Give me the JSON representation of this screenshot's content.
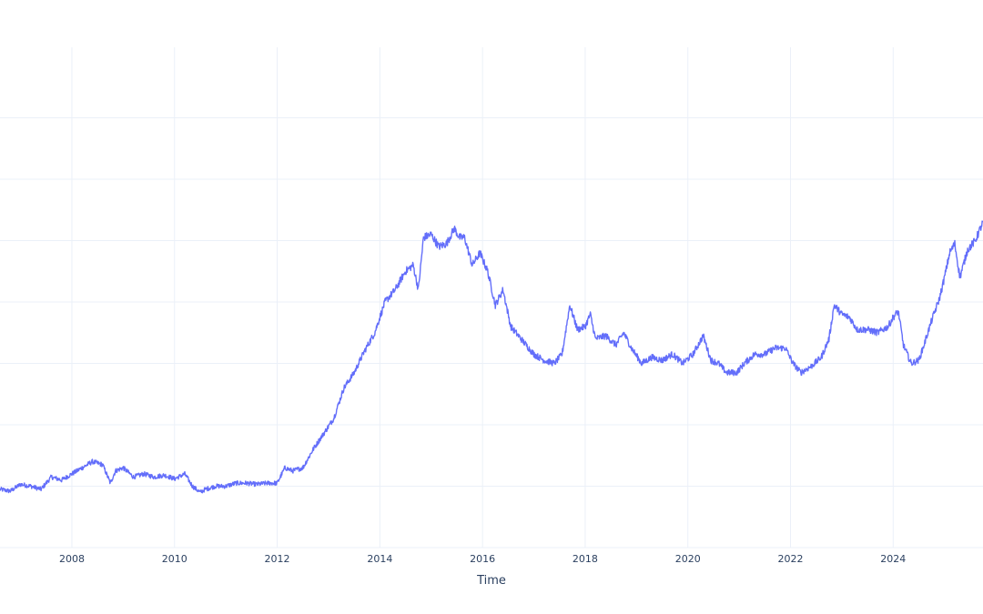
{
  "chart_data": {
    "type": "line",
    "title": "",
    "xlabel": "Time",
    "ylabel": "",
    "xlim": [
      2006.6,
      2025.75
    ],
    "ylim": [
      0,
      8
    ],
    "grid": true,
    "legend": "none",
    "x_ticks": [
      2008,
      2010,
      2012,
      2014,
      2016,
      2018,
      2020,
      2022,
      2024
    ],
    "x_tick_labels": [
      "2008",
      "2010",
      "2012",
      "2014",
      "2016",
      "2018",
      "2020",
      "2022",
      "2024"
    ],
    "y_gridlines": [
      0,
      1,
      2,
      3,
      4,
      5,
      6,
      7
    ],
    "colors": {
      "line": "#636efa",
      "grid": "#ebf0f8",
      "text": "#2a3f5f"
    },
    "series": [
      {
        "x": [
          2006.6,
          2006.8,
          2007.0,
          2007.2,
          2007.4,
          2007.6,
          2007.8,
          2008.0,
          2008.2,
          2008.4,
          2008.6,
          2008.75,
          2008.85,
          2009.0,
          2009.2,
          2009.4,
          2009.6,
          2009.8,
          2010.0,
          2010.2,
          2010.35,
          2010.5,
          2010.6,
          2010.8,
          2011.0,
          2011.2,
          2011.4,
          2011.6,
          2011.8,
          2012.0,
          2012.15,
          2012.3,
          2012.5,
          2012.7,
          2012.9,
          2013.1,
          2013.3,
          2013.5,
          2013.7,
          2013.9,
          2014.1,
          2014.3,
          2014.5,
          2014.65,
          2014.75,
          2014.85,
          2015.0,
          2015.15,
          2015.3,
          2015.45,
          2015.55,
          2015.65,
          2015.8,
          2015.95,
          2016.1,
          2016.25,
          2016.4,
          2016.55,
          2016.7,
          2016.85,
          2017.0,
          2017.2,
          2017.4,
          2017.55,
          2017.7,
          2017.85,
          2018.0,
          2018.1,
          2018.2,
          2018.4,
          2018.6,
          2018.75,
          2018.9,
          2019.1,
          2019.3,
          2019.5,
          2019.7,
          2019.9,
          2020.1,
          2020.2,
          2020.3,
          2020.45,
          2020.6,
          2020.75,
          2020.95,
          2021.1,
          2021.3,
          2021.5,
          2021.7,
          2021.9,
          2022.05,
          2022.2,
          2022.4,
          2022.6,
          2022.75,
          2022.85,
          2023.0,
          2023.15,
          2023.3,
          2023.5,
          2023.7,
          2023.9,
          2024.0,
          2024.1,
          2024.2,
          2024.35,
          2024.5,
          2024.6,
          2024.75,
          2024.9,
          2025.0,
          2025.1,
          2025.2,
          2025.3,
          2025.45,
          2025.6,
          2025.75
        ],
        "y": [
          0.95,
          0.92,
          1.03,
          1.0,
          0.95,
          1.15,
          1.1,
          1.2,
          1.3,
          1.4,
          1.35,
          1.05,
          1.25,
          1.3,
          1.15,
          1.2,
          1.15,
          1.18,
          1.12,
          1.2,
          1.0,
          0.9,
          0.95,
          1.0,
          1.0,
          1.05,
          1.05,
          1.03,
          1.05,
          1.05,
          1.3,
          1.25,
          1.3,
          1.6,
          1.85,
          2.1,
          2.6,
          2.85,
          3.2,
          3.5,
          4.0,
          4.2,
          4.5,
          4.6,
          4.2,
          5.05,
          5.1,
          4.9,
          4.95,
          5.2,
          5.05,
          5.05,
          4.6,
          4.8,
          4.5,
          3.95,
          4.2,
          3.6,
          3.45,
          3.3,
          3.15,
          3.05,
          3.0,
          3.15,
          3.95,
          3.55,
          3.6,
          3.8,
          3.4,
          3.45,
          3.3,
          3.5,
          3.25,
          3.0,
          3.1,
          3.05,
          3.15,
          3.0,
          3.15,
          3.3,
          3.45,
          3.05,
          3.0,
          2.85,
          2.85,
          3.0,
          3.15,
          3.15,
          3.25,
          3.25,
          3.0,
          2.85,
          2.95,
          3.1,
          3.4,
          3.95,
          3.8,
          3.75,
          3.55,
          3.55,
          3.5,
          3.6,
          3.75,
          3.85,
          3.3,
          3.0,
          3.05,
          3.3,
          3.7,
          4.05,
          4.4,
          4.8,
          4.95,
          4.4,
          4.85,
          5.0,
          5.3
        ]
      }
    ]
  }
}
